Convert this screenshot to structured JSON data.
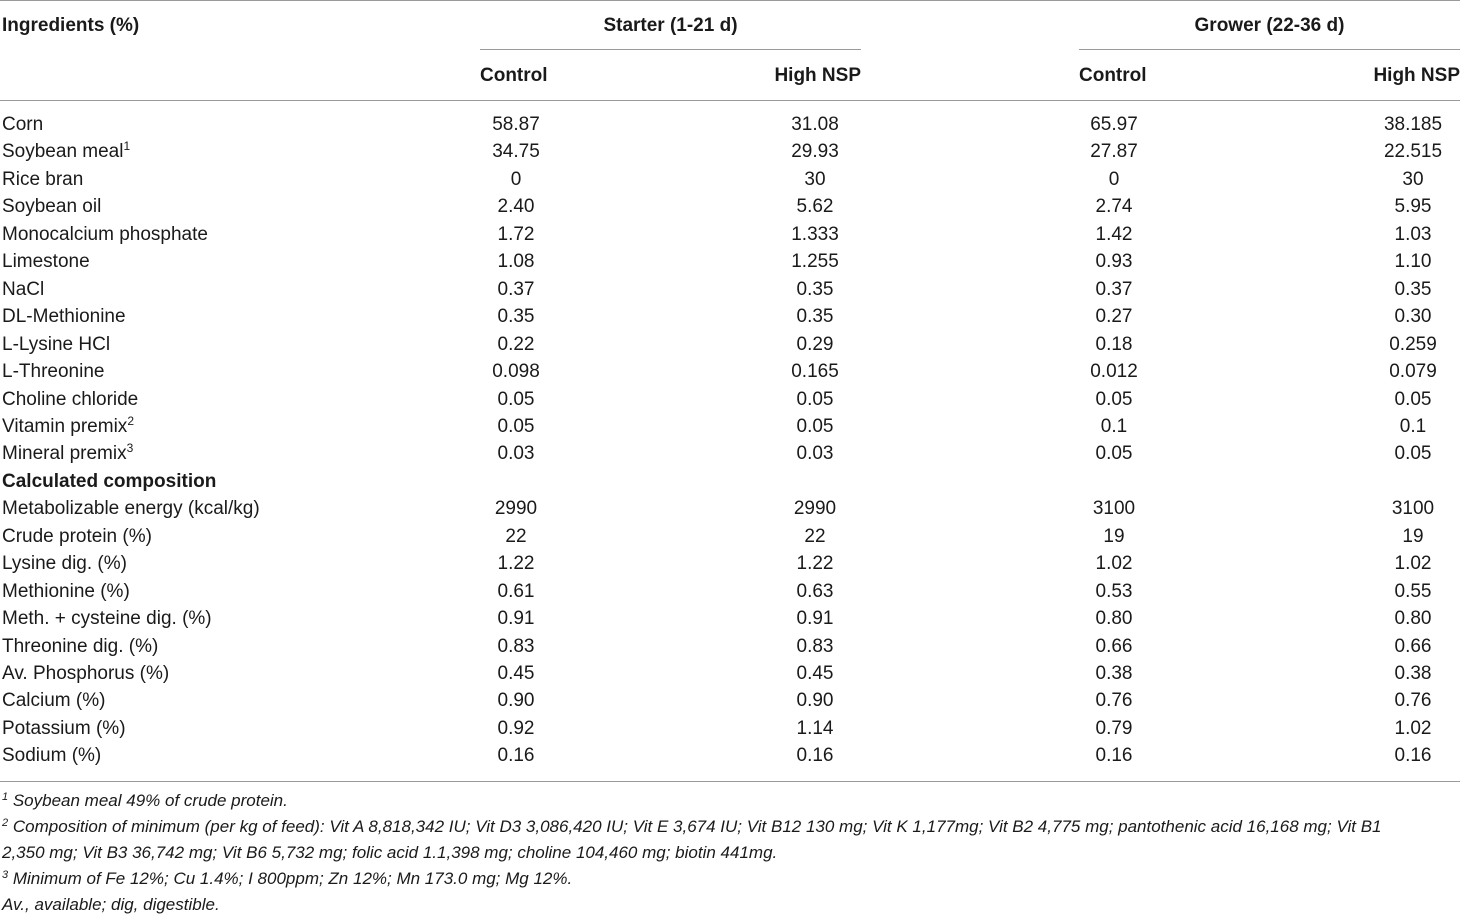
{
  "header": {
    "ingredients": "Ingredients (%)",
    "groups": [
      "Starter (1-21 d)",
      "Grower (22-36 d)"
    ],
    "subcols": [
      "Control",
      "High NSP",
      "Control",
      "High NSP"
    ]
  },
  "rows": [
    {
      "label": "Corn",
      "values": [
        "58.87",
        "31.08",
        "65.97",
        "38.185"
      ]
    },
    {
      "label": "Soybean meal",
      "sup": "1",
      "values": [
        "34.75",
        "29.93",
        "27.87",
        "22.515"
      ]
    },
    {
      "label": "Rice bran",
      "values": [
        "0",
        "30",
        "0",
        "30"
      ]
    },
    {
      "label": "Soybean oil",
      "values": [
        "2.40",
        "5.62",
        "2.74",
        "5.95"
      ]
    },
    {
      "label": "Monocalcium phosphate",
      "values": [
        "1.72",
        "1.333",
        "1.42",
        "1.03"
      ]
    },
    {
      "label": "Limestone",
      "values": [
        "1.08",
        "1.255",
        "0.93",
        "1.10"
      ]
    },
    {
      "label": "NaCl",
      "values": [
        "0.37",
        "0.35",
        "0.37",
        "0.35"
      ]
    },
    {
      "label": "DL-Methionine",
      "values": [
        "0.35",
        "0.35",
        "0.27",
        "0.30"
      ]
    },
    {
      "label": "L-Lysine HCl",
      "values": [
        "0.22",
        "0.29",
        "0.18",
        "0.259"
      ]
    },
    {
      "label": "L-Threonine",
      "values": [
        "0.098",
        "0.165",
        "0.012",
        "0.079"
      ]
    },
    {
      "label": "Choline chloride",
      "values": [
        "0.05",
        "0.05",
        "0.05",
        "0.05"
      ]
    },
    {
      "label": "Vitamin premix",
      "sup": "2",
      "values": [
        "0.05",
        "0.05",
        "0.1",
        "0.1"
      ]
    },
    {
      "label": "Mineral premix",
      "sup": "3",
      "values": [
        "0.03",
        "0.03",
        "0.05",
        "0.05"
      ]
    },
    {
      "label": "Calculated composition",
      "section": true
    },
    {
      "label": "Metabolizable energy (kcal/kg)",
      "values": [
        "2990",
        "2990",
        "3100",
        "3100"
      ]
    },
    {
      "label": "Crude protein (%)",
      "values": [
        "22",
        "22",
        "19",
        "19"
      ]
    },
    {
      "label": "Lysine dig. (%)",
      "values": [
        "1.22",
        "1.22",
        "1.02",
        "1.02"
      ]
    },
    {
      "label": "Methionine (%)",
      "values": [
        "0.61",
        "0.63",
        "0.53",
        "0.55"
      ]
    },
    {
      "label": "Meth. + cysteine dig. (%)",
      "values": [
        "0.91",
        "0.91",
        "0.80",
        "0.80"
      ]
    },
    {
      "label": "Threonine dig. (%)",
      "values": [
        "0.83",
        "0.83",
        "0.66",
        "0.66"
      ]
    },
    {
      "label": "Av. Phosphorus (%)",
      "values": [
        "0.45",
        "0.45",
        "0.38",
        "0.38"
      ]
    },
    {
      "label": "Calcium (%)",
      "values": [
        "0.90",
        "0.90",
        "0.76",
        "0.76"
      ]
    },
    {
      "label": "Potassium (%)",
      "values": [
        "0.92",
        "1.14",
        "0.79",
        "1.02"
      ]
    },
    {
      "label": "Sodium (%)",
      "values": [
        "0.16",
        "0.16",
        "0.16",
        "0.16"
      ]
    }
  ],
  "footnotes": {
    "fn1": {
      "mark": "1",
      "text": " Soybean meal 49% of crude protein."
    },
    "fn2": {
      "mark": "2",
      "line1": " Composition of minimum (per kg of feed): Vit A 8,818,342 IU; Vit D3 3,086,420 IU; Vit E 3,674 IU; Vit B12 130 mg; Vit K 1,177mg; Vit B2 4,775 mg; pantothenic acid 16,168 mg; Vit B1",
      "line2": "2,350 mg; Vit B3 36,742 mg; Vit B6 5,732 mg; folic acid 1.1,398 mg; choline 104,460 mg; biotin 441mg."
    },
    "fn3": {
      "mark": "3",
      "text": " Minimum of Fe 12%; Cu 1.4%; I 800ppm; Zn 12%; Mn 173.0 mg; Mg 12%."
    },
    "abbrev": "Av., available; dig, digestible."
  }
}
